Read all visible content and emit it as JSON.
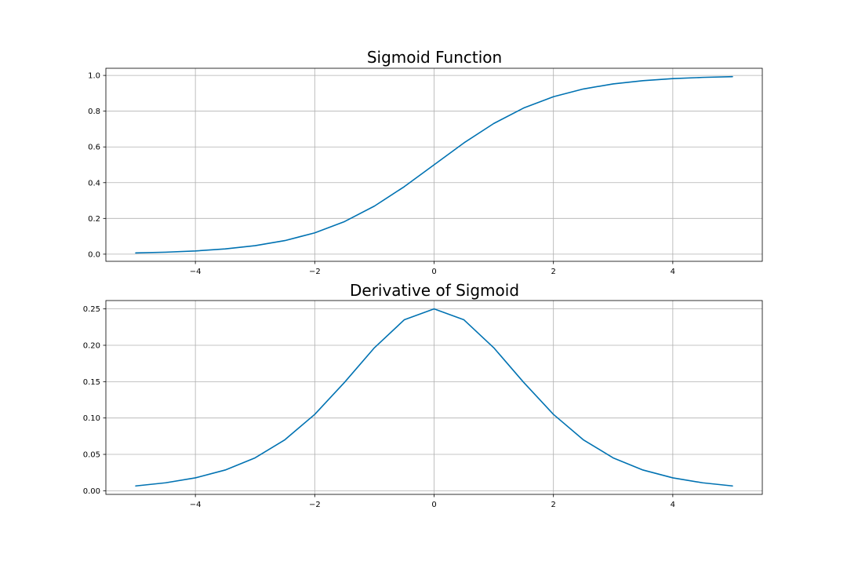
{
  "chart_data": [
    {
      "type": "line",
      "title": "Sigmoid Function",
      "xlabel": "",
      "ylabel": "",
      "xlim": [
        -5.5,
        5.5
      ],
      "ylim": [
        -0.04,
        1.04
      ],
      "xticks": [
        -4,
        -2,
        0,
        2,
        4
      ],
      "xtick_labels": [
        "−4",
        "−2",
        "0",
        "2",
        "4"
      ],
      "yticks": [
        0.0,
        0.2,
        0.4,
        0.6,
        0.8,
        1.0
      ],
      "ytick_labels": [
        "0.0",
        "0.2",
        "0.4",
        "0.6",
        "0.8",
        "1.0"
      ],
      "grid": true,
      "line_color": "#0072b2",
      "series": [
        {
          "x": [
            -5,
            -4.5,
            -4,
            -3.5,
            -3,
            -2.5,
            -2,
            -1.5,
            -1,
            -0.5,
            0,
            0.5,
            1,
            1.5,
            2,
            2.5,
            3,
            3.5,
            4,
            4.5,
            5
          ],
          "y": [
            0.0067,
            0.011,
            0.018,
            0.0293,
            0.0474,
            0.0759,
            0.1192,
            0.1824,
            0.2689,
            0.3775,
            0.5,
            0.6225,
            0.7311,
            0.8176,
            0.8808,
            0.9241,
            0.9526,
            0.9707,
            0.982,
            0.989,
            0.9933
          ]
        }
      ]
    },
    {
      "type": "line",
      "title": "Derivative of Sigmoid",
      "xlabel": "",
      "ylabel": "",
      "xlim": [
        -5.5,
        5.5
      ],
      "ylim": [
        -0.005,
        0.2615
      ],
      "xticks": [
        -4,
        -2,
        0,
        2,
        4
      ],
      "xtick_labels": [
        "−4",
        "−2",
        "0",
        "2",
        "4"
      ],
      "yticks": [
        0.0,
        0.05,
        0.1,
        0.15,
        0.2,
        0.25
      ],
      "ytick_labels": [
        "0.00",
        "0.05",
        "0.10",
        "0.15",
        "0.20",
        "0.25"
      ],
      "grid": true,
      "line_color": "#0072b2",
      "series": [
        {
          "x": [
            -5,
            -4.5,
            -4,
            -3.5,
            -3,
            -2.5,
            -2,
            -1.5,
            -1,
            -0.5,
            0,
            0.5,
            1,
            1.5,
            2,
            2.5,
            3,
            3.5,
            4,
            4.5,
            5
          ],
          "y": [
            0.0066,
            0.0109,
            0.0177,
            0.0285,
            0.0452,
            0.0701,
            0.105,
            0.1491,
            0.1966,
            0.235,
            0.25,
            0.235,
            0.1966,
            0.1491,
            0.105,
            0.0701,
            0.0452,
            0.0285,
            0.0177,
            0.0109,
            0.0066
          ]
        }
      ]
    }
  ]
}
